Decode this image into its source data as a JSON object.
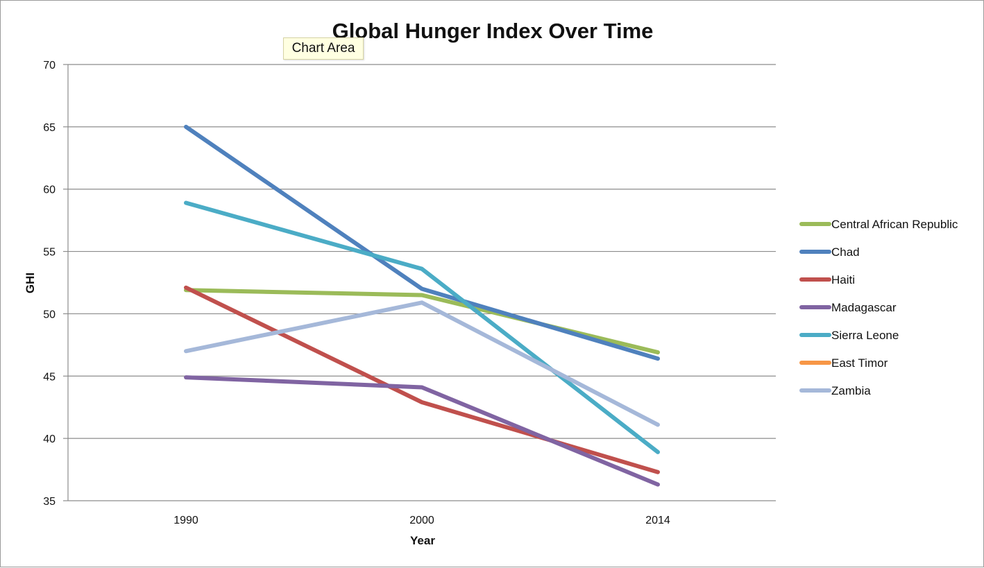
{
  "tooltip": "Chart Area",
  "chart_data": {
    "type": "line",
    "title": "Global Hunger Index Over Time",
    "xlabel": "Year",
    "ylabel": "GHI",
    "categories": [
      "1990",
      "2000",
      "2014"
    ],
    "ylim": [
      35,
      70
    ],
    "yticks": [
      35,
      40,
      45,
      50,
      55,
      60,
      65,
      70
    ],
    "grid": true,
    "legend_position": "right",
    "series": [
      {
        "name": "Central African Republic",
        "color": "#9bbb59",
        "values": [
          51.9,
          51.5,
          46.9
        ]
      },
      {
        "name": "Chad",
        "color": "#4f81bd",
        "values": [
          65.0,
          52.0,
          46.4
        ]
      },
      {
        "name": "Haiti",
        "color": "#c0504d",
        "values": [
          52.1,
          42.9,
          37.3
        ]
      },
      {
        "name": "Madagascar",
        "color": "#8064a2",
        "values": [
          44.9,
          44.1,
          36.3
        ]
      },
      {
        "name": "Sierra Leone",
        "color": "#4bacc6",
        "values": [
          58.9,
          53.6,
          38.9
        ]
      },
      {
        "name": "East Timor",
        "color": "#f79646",
        "values": [
          null,
          null,
          null
        ]
      },
      {
        "name": "Zambia",
        "color": "#a5b8d9",
        "values": [
          47.0,
          50.9,
          41.1
        ]
      }
    ]
  }
}
